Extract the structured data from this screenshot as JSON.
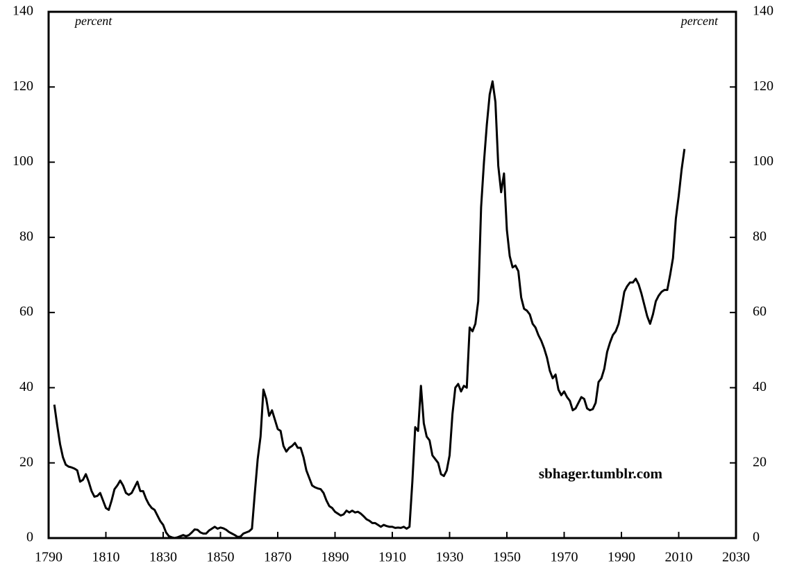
{
  "chart_data": {
    "type": "line",
    "x": [
      1792,
      1793,
      1794,
      1795,
      1796,
      1797,
      1798,
      1799,
      1800,
      1801,
      1802,
      1803,
      1804,
      1805,
      1806,
      1807,
      1808,
      1809,
      1810,
      1811,
      1812,
      1813,
      1814,
      1815,
      1816,
      1817,
      1818,
      1819,
      1820,
      1821,
      1822,
      1823,
      1824,
      1825,
      1826,
      1827,
      1828,
      1829,
      1830,
      1831,
      1832,
      1833,
      1834,
      1835,
      1836,
      1837,
      1838,
      1839,
      1840,
      1841,
      1842,
      1843,
      1844,
      1845,
      1846,
      1847,
      1848,
      1849,
      1850,
      1851,
      1852,
      1853,
      1854,
      1855,
      1856,
      1857,
      1858,
      1859,
      1860,
      1861,
      1862,
      1863,
      1864,
      1865,
      1866,
      1867,
      1868,
      1869,
      1870,
      1871,
      1872,
      1873,
      1874,
      1875,
      1876,
      1877,
      1878,
      1879,
      1880,
      1881,
      1882,
      1883,
      1884,
      1885,
      1886,
      1887,
      1888,
      1889,
      1890,
      1891,
      1892,
      1893,
      1894,
      1895,
      1896,
      1897,
      1898,
      1899,
      1900,
      1901,
      1902,
      1903,
      1904,
      1905,
      1906,
      1907,
      1908,
      1909,
      1910,
      1911,
      1912,
      1913,
      1914,
      1915,
      1916,
      1917,
      1918,
      1919,
      1920,
      1921,
      1922,
      1923,
      1924,
      1925,
      1926,
      1927,
      1928,
      1929,
      1930,
      1931,
      1932,
      1933,
      1934,
      1935,
      1936,
      1937,
      1938,
      1939,
      1940,
      1941,
      1942,
      1943,
      1944,
      1945,
      1946,
      1947,
      1948,
      1949,
      1950,
      1951,
      1952,
      1953,
      1954,
      1955,
      1956,
      1957,
      1958,
      1959,
      1960,
      1961,
      1962,
      1963,
      1964,
      1965,
      1966,
      1967,
      1968,
      1969,
      1970,
      1971,
      1972,
      1973,
      1974,
      1975,
      1976,
      1977,
      1978,
      1979,
      1980,
      1981,
      1982,
      1983,
      1984,
      1985,
      1986,
      1987,
      1988,
      1989,
      1990,
      1991,
      1992,
      1993,
      1994,
      1995,
      1996,
      1997,
      1998,
      1999,
      2000,
      2001,
      2002,
      2003,
      2004,
      2005,
      2006,
      2007,
      2008,
      2009,
      2010,
      2011,
      2012
    ],
    "values": [
      35.5,
      30,
      25,
      21.5,
      19.5,
      19,
      18.8,
      18.5,
      18,
      15,
      15.5,
      17,
      15,
      12.5,
      11,
      11.2,
      12,
      10,
      8,
      7.5,
      10,
      13,
      14,
      15.3,
      14,
      12,
      11.5,
      12,
      13.5,
      15,
      12.5,
      12.5,
      10.5,
      9,
      8,
      7.5,
      6,
      4.5,
      3.5,
      1.5,
      0.5,
      0.2,
      0,
      0.2,
      0.5,
      0.8,
      0.5,
      0.8,
      1.5,
      2.3,
      2.2,
      1.5,
      1.2,
      1.2,
      2,
      2.5,
      3,
      2.5,
      2.8,
      2.6,
      2.2,
      1.6,
      1.2,
      0.8,
      0.3,
      0.4,
      1.2,
      1.5,
      1.8,
      2.5,
      12,
      21,
      27,
      39.5,
      37,
      32.5,
      34,
      31.5,
      29,
      28.5,
      24.5,
      23,
      24,
      24.5,
      25.3,
      24,
      24,
      21.5,
      18,
      16,
      14,
      13.5,
      13.2,
      13,
      12,
      10,
      8.5,
      8,
      7,
      6.5,
      6,
      6.3,
      7.3,
      6.8,
      7.3,
      6.8,
      7,
      6.5,
      5.8,
      5,
      4.6,
      4,
      4,
      3.5,
      3,
      3.5,
      3.2,
      3,
      3,
      2.7,
      2.8,
      2.7,
      3,
      2.5,
      3,
      15,
      29.5,
      28.5,
      40.5,
      30.5,
      27,
      26,
      22,
      21,
      20,
      17,
      16.5,
      18,
      22,
      33,
      40,
      41,
      39,
      40.5,
      40,
      56,
      55,
      57,
      63,
      88,
      100,
      110,
      118,
      121.5,
      116,
      99,
      92,
      97,
      82,
      75,
      72,
      72.5,
      71,
      64,
      61,
      60.5,
      59.5,
      57,
      56,
      54,
      52.5,
      50.5,
      48,
      44.5,
      42.5,
      43.5,
      39.5,
      38,
      39,
      37.5,
      36.5,
      34,
      34.5,
      36,
      37.5,
      37,
      34.5,
      34,
      34.3,
      36,
      41.5,
      42.5,
      45,
      49.5,
      52,
      54,
      55,
      57,
      61,
      65.5,
      67,
      68,
      68,
      69,
      67.5,
      65,
      62,
      59,
      57,
      59.5,
      63,
      64.5,
      65.5,
      66,
      66,
      70,
      74.5,
      85,
      91,
      98,
      103.5
    ],
    "color": "#000000",
    "xlim": [
      1790,
      2030
    ],
    "xticks": [
      1790,
      1810,
      1830,
      1850,
      1870,
      1890,
      1910,
      1930,
      1950,
      1970,
      1990,
      2010,
      2030
    ],
    "ylim": [
      0,
      140
    ],
    "yticks": [
      0,
      20,
      40,
      60,
      80,
      100,
      120,
      140
    ],
    "y2lim": [
      0,
      140
    ],
    "y2ticks": [
      0,
      20,
      40,
      60,
      80,
      100,
      120,
      140
    ],
    "annotations": [
      "percent",
      "percent",
      "sbhager.tumblr.com"
    ]
  }
}
